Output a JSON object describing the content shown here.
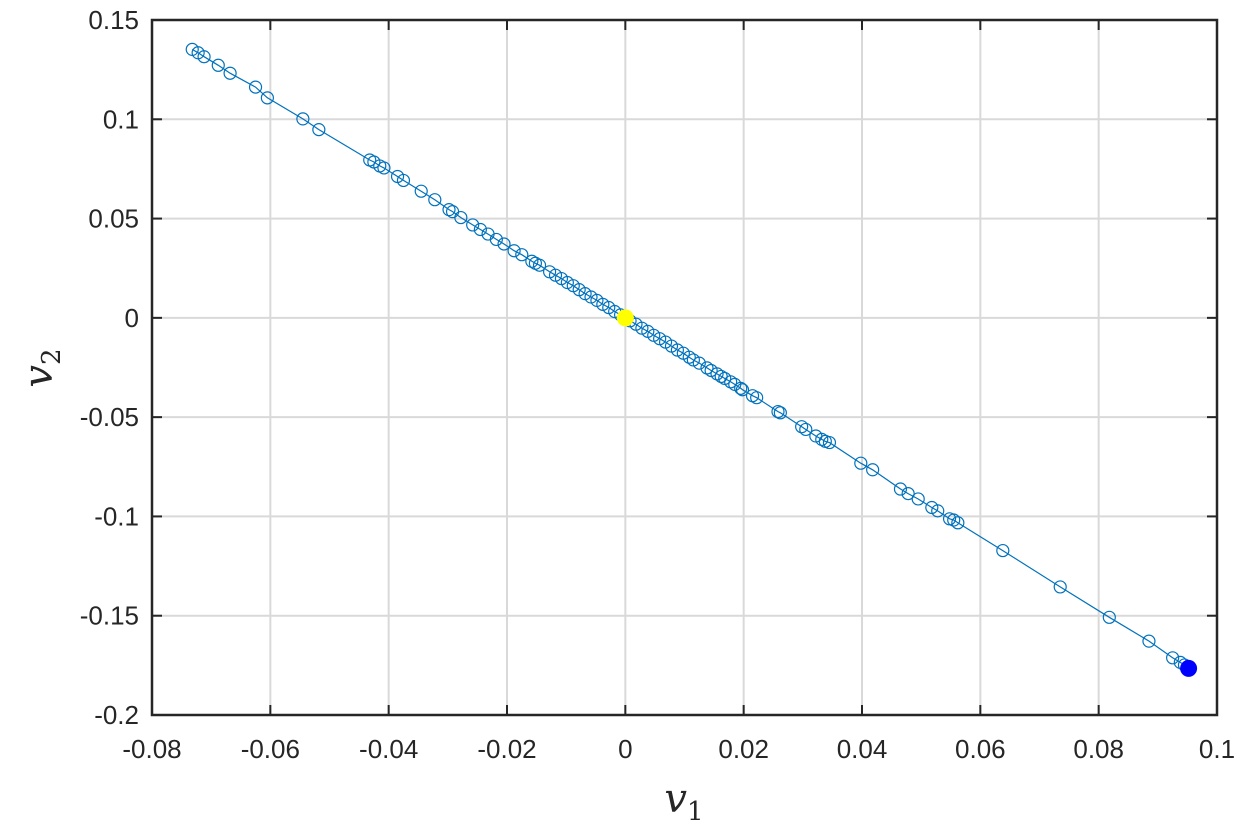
{
  "chart_data": {
    "type": "scatter",
    "xlabel": "v",
    "xlabel_sub": "1",
    "ylabel": "v",
    "ylabel_sub": "2",
    "xlim": [
      -0.08,
      0.1
    ],
    "ylim": [
      -0.2,
      0.15
    ],
    "xticks": [
      "-0.08",
      "-0.06",
      "-0.04",
      "-0.02",
      "0",
      "0.02",
      "0.04",
      "0.06",
      "0.08",
      "0.1"
    ],
    "yticks": [
      "0.15",
      "0.1",
      "0.05",
      "0",
      "-0.05",
      "-0.1",
      "-0.15",
      "-0.2"
    ],
    "grid": true,
    "colors": {
      "series": "#0072BD",
      "start_point": "#0000FF",
      "end_point": "#FFFF00",
      "grid": "#D9D9D9",
      "axes": "#262626"
    },
    "series": [
      {
        "marker": "open-circle",
        "line": true,
        "x": [
          0.0952,
          0.0945,
          0.0938,
          0.0925,
          0.0885,
          0.0818,
          0.0735,
          0.0638,
          0.0562,
          0.0555,
          0.0548,
          0.0528,
          0.0518,
          0.0495,
          0.0478,
          0.0465,
          0.0418,
          0.0398,
          0.0345,
          0.0338,
          0.0332,
          0.0322,
          0.0305,
          0.0298,
          0.0262,
          0.0258,
          0.0222,
          0.0215,
          0.0198,
          0.0195,
          0.0185,
          0.0178,
          0.0168,
          0.0162,
          0.0155,
          0.0145,
          0.0138,
          0.0125,
          0.0115,
          0.0108,
          0.0098,
          0.0088,
          0.0078,
          0.0068,
          0.0058,
          0.0048,
          0.0038,
          0.0028,
          0.0018,
          0.0008,
          0.0,
          -0.0008,
          -0.0018,
          -0.0028,
          -0.0038,
          -0.0048,
          -0.0058,
          -0.0068,
          -0.0078,
          -0.0088,
          -0.0098,
          -0.0108,
          -0.0118,
          -0.0128,
          -0.0145,
          -0.0152,
          -0.0158,
          -0.0175,
          -0.0188,
          -0.0205,
          -0.0218,
          -0.0232,
          -0.0245,
          -0.0258,
          -0.0278,
          -0.0292,
          -0.0298,
          -0.0322,
          -0.0345,
          -0.0375,
          -0.0385,
          -0.0408,
          -0.0415,
          -0.0425,
          -0.0432,
          -0.0518,
          -0.0545,
          -0.0605,
          -0.0625,
          -0.0668,
          -0.0688,
          -0.0712,
          -0.0722,
          -0.0732
        ],
        "y": [
          -0.1765,
          -0.1748,
          -0.1735,
          -0.1712,
          -0.1628,
          -0.1508,
          -0.1355,
          -0.1172,
          -0.1032,
          -0.1018,
          -0.1012,
          -0.0972,
          -0.0955,
          -0.0912,
          -0.0885,
          -0.0862,
          -0.0765,
          -0.0732,
          -0.0628,
          -0.0622,
          -0.0612,
          -0.0595,
          -0.0562,
          -0.0548,
          -0.0478,
          -0.0472,
          -0.0402,
          -0.0392,
          -0.0362,
          -0.0355,
          -0.0335,
          -0.0322,
          -0.0305,
          -0.0295,
          -0.0282,
          -0.0265,
          -0.0252,
          -0.0228,
          -0.0212,
          -0.0198,
          -0.0178,
          -0.0162,
          -0.0142,
          -0.0122,
          -0.0105,
          -0.0088,
          -0.0068,
          -0.0052,
          -0.0032,
          -0.0015,
          0.0,
          0.0015,
          0.0032,
          0.0052,
          0.0068,
          0.0088,
          0.0105,
          0.0122,
          0.0142,
          0.0162,
          0.0178,
          0.0198,
          0.0215,
          0.0232,
          0.0265,
          0.0275,
          0.0285,
          0.0318,
          0.0338,
          0.0372,
          0.0395,
          0.0422,
          0.0445,
          0.0468,
          0.0505,
          0.0535,
          0.0545,
          0.0595,
          0.0638,
          0.0692,
          0.0712,
          0.0755,
          0.0765,
          0.0785,
          0.0795,
          0.0948,
          0.1002,
          0.1108,
          0.1162,
          0.1232,
          0.1272,
          0.1315,
          0.1335,
          0.1352
        ]
      }
    ],
    "highlights": [
      {
        "role": "start_point",
        "x": 0.0952,
        "y": -0.1765
      },
      {
        "role": "end_point",
        "x": 0.0,
        "y": 0.0
      }
    ]
  }
}
